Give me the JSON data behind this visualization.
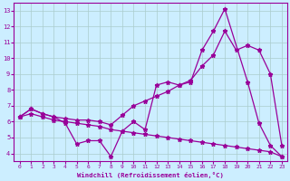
{
  "xlabel": "Windchill (Refroidissement éolien,°C)",
  "line_color": "#990099",
  "bg_color": "#cceeff",
  "grid_color": "#aacccc",
  "xlim": [
    -0.5,
    23.5
  ],
  "ylim": [
    3.5,
    13.5
  ],
  "yticks": [
    4,
    5,
    6,
    7,
    8,
    9,
    10,
    11,
    12,
    13
  ],
  "xticks": [
    0,
    1,
    2,
    3,
    4,
    5,
    6,
    7,
    8,
    9,
    10,
    11,
    12,
    13,
    14,
    15,
    16,
    17,
    18,
    19,
    20,
    21,
    22,
    23
  ],
  "line1_x": [
    0,
    1,
    2,
    3,
    4,
    5,
    6,
    7,
    8,
    9,
    10,
    11,
    12,
    13,
    14,
    15,
    16,
    17,
    18,
    20,
    21,
    22,
    23
  ],
  "line1_y": [
    6.3,
    6.8,
    6.5,
    6.3,
    5.9,
    4.6,
    4.8,
    4.8,
    3.8,
    5.4,
    6.0,
    5.5,
    8.3,
    8.5,
    8.3,
    8.5,
    10.5,
    11.7,
    13.1,
    8.5,
    5.9,
    4.5,
    3.8
  ],
  "line2_x": [
    0,
    1,
    2,
    3,
    4,
    5,
    6,
    7,
    8,
    9,
    10,
    11,
    12,
    13,
    14,
    15,
    16,
    17,
    18,
    19,
    20,
    21,
    22,
    23
  ],
  "line2_y": [
    6.3,
    6.8,
    6.5,
    6.3,
    6.2,
    6.1,
    6.1,
    6.0,
    5.8,
    6.4,
    7.0,
    7.3,
    7.6,
    7.9,
    8.3,
    8.6,
    9.5,
    10.2,
    11.7,
    10.5,
    10.8,
    10.5,
    9.0,
    4.5
  ],
  "line3_x": [
    0,
    1,
    2,
    3,
    4,
    5,
    6,
    7,
    8,
    9,
    10,
    11,
    12,
    13,
    14,
    15,
    16,
    17,
    18,
    19,
    20,
    21,
    22,
    23
  ],
  "line3_y": [
    6.3,
    6.5,
    6.3,
    6.1,
    6.0,
    5.9,
    5.8,
    5.7,
    5.5,
    5.4,
    5.3,
    5.2,
    5.1,
    5.0,
    4.9,
    4.8,
    4.7,
    4.6,
    4.5,
    4.4,
    4.3,
    4.2,
    4.1,
    3.8
  ]
}
